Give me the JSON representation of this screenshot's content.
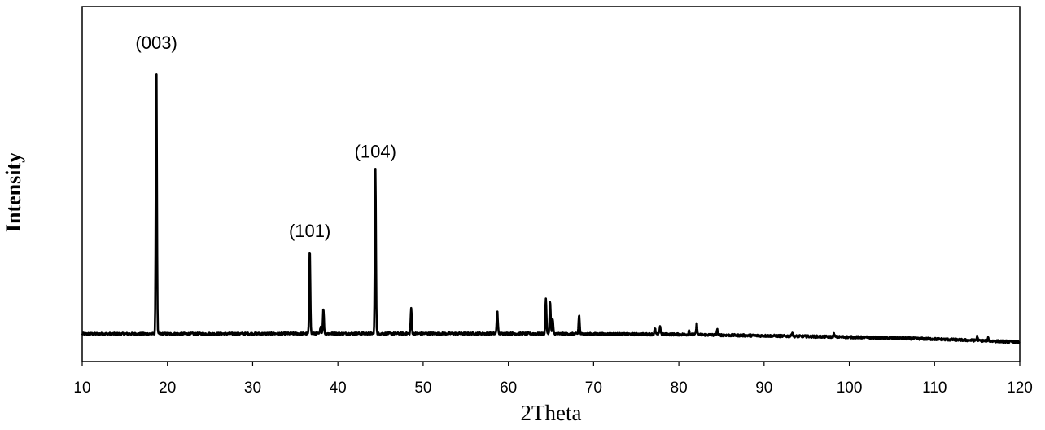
{
  "chart_data": {
    "type": "line",
    "title": "",
    "xlabel": "2Theta",
    "ylabel": "Intensity",
    "xlim": [
      10,
      120
    ],
    "x_ticks": [
      10,
      20,
      30,
      40,
      50,
      60,
      70,
      80,
      90,
      100,
      110,
      120
    ],
    "y_ticks_shown": false,
    "ylim": [
      0,
      100
    ],
    "grid": false,
    "legend": "none",
    "line_color": "#000000",
    "baseline": [
      [
        10,
        3
      ],
      [
        20,
        3
      ],
      [
        40,
        3.1
      ],
      [
        60,
        3.1
      ],
      [
        80,
        2.8
      ],
      [
        100,
        1.8
      ],
      [
        110,
        1.1
      ],
      [
        120,
        0
      ]
    ],
    "peaks": [
      {
        "x": 18.7,
        "height": 100,
        "label": "(003)"
      },
      {
        "x": 36.7,
        "height": 31,
        "label": "(101)"
      },
      {
        "x": 38.0,
        "height": 3,
        "label": ""
      },
      {
        "x": 38.3,
        "height": 9,
        "label": ""
      },
      {
        "x": 44.4,
        "height": 60,
        "label": "(104)"
      },
      {
        "x": 48.6,
        "height": 9,
        "label": ""
      },
      {
        "x": 58.7,
        "height": 8.5,
        "label": ""
      },
      {
        "x": 64.4,
        "height": 13,
        "label": ""
      },
      {
        "x": 64.9,
        "height": 12,
        "label": ""
      },
      {
        "x": 65.2,
        "height": 5,
        "label": ""
      },
      {
        "x": 68.3,
        "height": 7,
        "label": ""
      },
      {
        "x": 77.2,
        "height": 2,
        "label": ""
      },
      {
        "x": 77.8,
        "height": 3,
        "label": ""
      },
      {
        "x": 81.2,
        "height": 1.5,
        "label": ""
      },
      {
        "x": 82.1,
        "height": 4,
        "label": ""
      },
      {
        "x": 84.5,
        "height": 2,
        "label": ""
      },
      {
        "x": 93.3,
        "height": 1.5,
        "label": ""
      },
      {
        "x": 98.2,
        "height": 1,
        "label": ""
      },
      {
        "x": 115.0,
        "height": 1.5,
        "label": ""
      },
      {
        "x": 116.3,
        "height": 1,
        "label": ""
      }
    ]
  }
}
